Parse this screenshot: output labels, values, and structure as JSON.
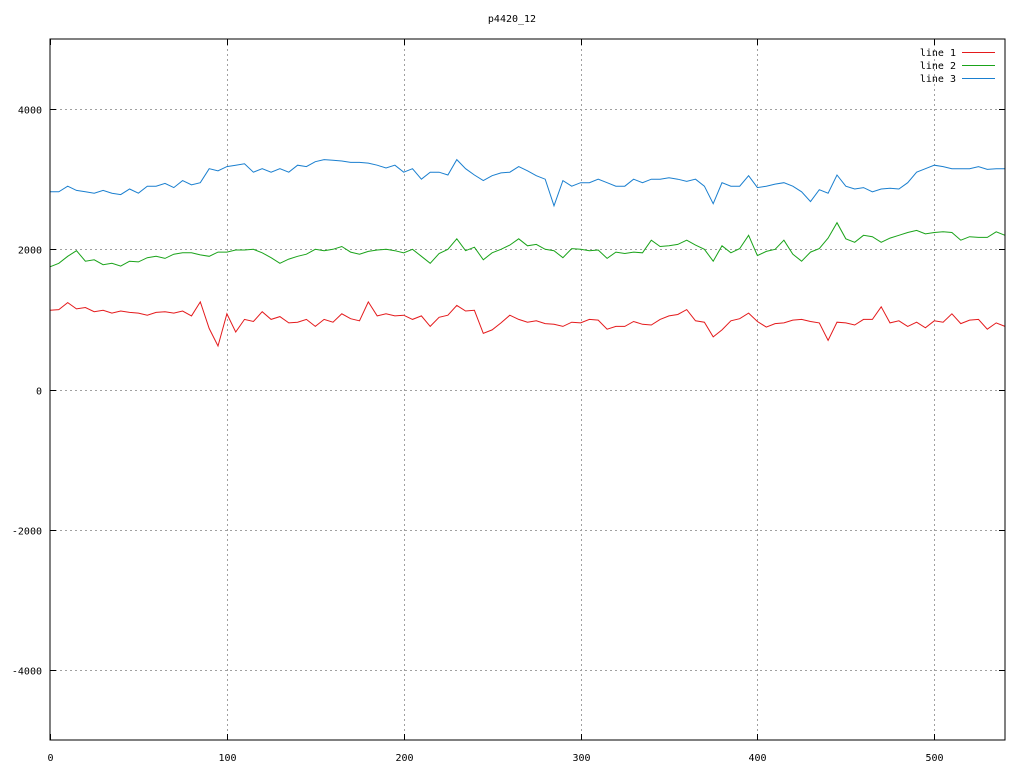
{
  "chart_data": {
    "type": "line",
    "title": "p4420_12",
    "xlabel": "",
    "ylabel": "",
    "xlim": [
      0,
      540
    ],
    "ylim": [
      -5000,
      5000
    ],
    "xticks": [
      0,
      100,
      200,
      300,
      400,
      500
    ],
    "yticks": [
      -4000,
      -2000,
      0,
      2000,
      4000
    ],
    "xtick_labels": [
      "0",
      "100",
      "200",
      "300",
      "400",
      "500"
    ],
    "ytick_labels": [
      "-4000",
      "-2000",
      "0",
      "2000",
      "4000"
    ],
    "grid": true,
    "legend_position": "top-right",
    "x": [
      0,
      5,
      10,
      15,
      20,
      25,
      30,
      35,
      40,
      45,
      50,
      55,
      60,
      65,
      70,
      75,
      80,
      85,
      90,
      95,
      100,
      105,
      110,
      115,
      120,
      125,
      130,
      135,
      140,
      145,
      150,
      155,
      160,
      165,
      170,
      175,
      180,
      185,
      190,
      195,
      200,
      205,
      210,
      215,
      220,
      225,
      230,
      235,
      240,
      245,
      250,
      255,
      260,
      265,
      270,
      275,
      280,
      285,
      290,
      295,
      300,
      305,
      310,
      315,
      320,
      325,
      330,
      335,
      340,
      345,
      350,
      355,
      360,
      365,
      370,
      375,
      380,
      385,
      390,
      395,
      400,
      405,
      410,
      415,
      420,
      425,
      430,
      435,
      440,
      445,
      450,
      455,
      460,
      465,
      470,
      475,
      480,
      485,
      490,
      495,
      500,
      505,
      510,
      515,
      520,
      525,
      530,
      535,
      540
    ],
    "series": [
      {
        "name": "line 1",
        "color": "#e41a1c",
        "values": [
          1130,
          1140,
          1240,
          1150,
          1170,
          1110,
          1130,
          1090,
          1120,
          1100,
          1090,
          1060,
          1100,
          1110,
          1090,
          1120,
          1050,
          1250,
          870,
          620,
          1080,
          820,
          1000,
          970,
          1110,
          1000,
          1040,
          950,
          960,
          1000,
          900,
          1000,
          960,
          1080,
          1010,
          980,
          1250,
          1050,
          1080,
          1050,
          1060,
          1000,
          1050,
          900,
          1030,
          1060,
          1200,
          1120,
          1130,
          800,
          850,
          950,
          1060,
          1000,
          960,
          980,
          940,
          930,
          900,
          960,
          950,
          1000,
          990,
          860,
          900,
          900,
          970,
          930,
          920,
          1000,
          1050,
          1070,
          1140,
          980,
          960,
          750,
          850,
          980,
          1010,
          1090,
          970,
          890,
          940,
          950,
          990,
          1000,
          970,
          950,
          700,
          960,
          950,
          920,
          1000,
          1000,
          1180,
          950,
          980,
          900,
          960,
          880,
          980,
          960,
          1080,
          940,
          990,
          1000,
          860,
          950,
          900
        ],
        "line_width": 1
      },
      {
        "name": "line 2",
        "color": "#1aa31a",
        "values": [
          1750,
          1800,
          1900,
          1980,
          1830,
          1850,
          1780,
          1800,
          1760,
          1830,
          1820,
          1880,
          1900,
          1870,
          1930,
          1950,
          1950,
          1920,
          1900,
          1960,
          1960,
          1990,
          1990,
          2000,
          1950,
          1880,
          1800,
          1860,
          1900,
          1930,
          2000,
          1980,
          2000,
          2040,
          1960,
          1930,
          1970,
          1990,
          2000,
          1980,
          1950,
          2000,
          1900,
          1800,
          1940,
          2000,
          2150,
          1980,
          2030,
          1850,
          1950,
          2000,
          2060,
          2150,
          2050,
          2070,
          2000,
          1980,
          1880,
          2010,
          2000,
          1980,
          1990,
          1870,
          1960,
          1940,
          1960,
          1950,
          2130,
          2040,
          2050,
          2070,
          2130,
          2060,
          2000,
          1830,
          2050,
          1950,
          2010,
          2200,
          1910,
          1970,
          2000,
          2130,
          1930,
          1830,
          1960,
          2010,
          2160,
          2380,
          2150,
          2100,
          2200,
          2180,
          2100,
          2160,
          2200,
          2240,
          2270,
          2220,
          2240,
          2250,
          2240,
          2130,
          2180,
          2170,
          2170,
          2250,
          2200
        ],
        "line_width": 1
      },
      {
        "name": "line 3",
        "color": "#1a7fcf",
        "values": [
          2820,
          2820,
          2900,
          2840,
          2820,
          2800,
          2840,
          2800,
          2780,
          2860,
          2800,
          2900,
          2900,
          2940,
          2880,
          2980,
          2920,
          2950,
          3150,
          3120,
          3180,
          3200,
          3220,
          3100,
          3150,
          3100,
          3150,
          3100,
          3200,
          3180,
          3250,
          3280,
          3270,
          3260,
          3240,
          3240,
          3230,
          3200,
          3160,
          3200,
          3100,
          3150,
          3000,
          3100,
          3100,
          3060,
          3280,
          3150,
          3060,
          2980,
          3050,
          3090,
          3100,
          3180,
          3120,
          3050,
          3000,
          2620,
          2980,
          2900,
          2950,
          2950,
          3000,
          2950,
          2900,
          2900,
          3000,
          2950,
          3000,
          3000,
          3020,
          3000,
          2970,
          3000,
          2900,
          2650,
          2950,
          2900,
          2900,
          3050,
          2880,
          2900,
          2930,
          2950,
          2900,
          2820,
          2680,
          2850,
          2800,
          3060,
          2900,
          2860,
          2880,
          2820,
          2860,
          2870,
          2860,
          2950,
          3100,
          3150,
          3200,
          3180,
          3150,
          3150,
          3150,
          3180,
          3140,
          3150,
          3150
        ],
        "line_width": 1
      }
    ]
  }
}
